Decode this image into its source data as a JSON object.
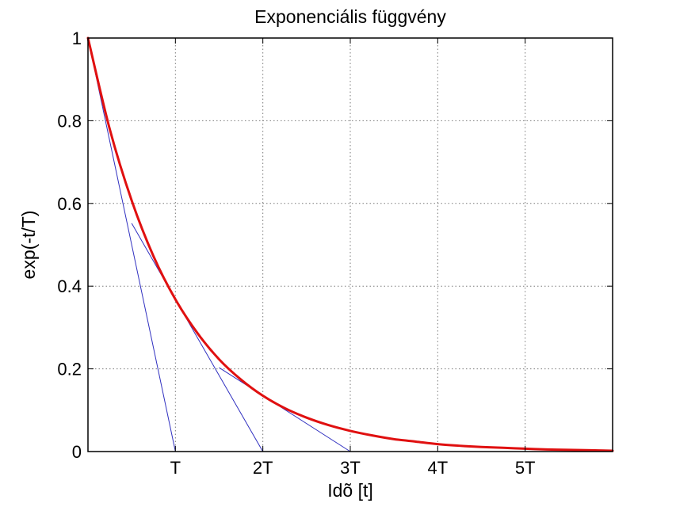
{
  "chart_data": {
    "type": "line",
    "title": "Exponenciális függvény",
    "xlabel": "Idõ [t]",
    "ylabel": "exp(-t/T)",
    "xlim": [
      0,
      6
    ],
    "ylim": [
      0,
      1
    ],
    "x_ticks": [
      {
        "value": 1,
        "label": "T"
      },
      {
        "value": 2,
        "label": "2T"
      },
      {
        "value": 3,
        "label": "3T"
      },
      {
        "value": 4,
        "label": "4T"
      },
      {
        "value": 5,
        "label": "5T"
      }
    ],
    "y_ticks": [
      {
        "value": 0,
        "label": "0"
      },
      {
        "value": 0.2,
        "label": "0.2"
      },
      {
        "value": 0.4,
        "label": "0.4"
      },
      {
        "value": 0.6,
        "label": "0.6"
      },
      {
        "value": 0.8,
        "label": "0.8"
      },
      {
        "value": 1,
        "label": "1"
      }
    ],
    "grid": true,
    "series": [
      {
        "color": "#e01010",
        "x": [
          0,
          0.25,
          0.5,
          0.75,
          1,
          1.25,
          1.5,
          1.75,
          2,
          2.25,
          2.5,
          2.75,
          3,
          3.25,
          3.5,
          3.75,
          4,
          4.25,
          4.5,
          4.75,
          5,
          5.25,
          5.5,
          5.75,
          6
        ],
        "y": [
          1,
          0.779,
          0.607,
          0.472,
          0.368,
          0.287,
          0.223,
          0.174,
          0.135,
          0.105,
          0.082,
          0.064,
          0.05,
          0.039,
          0.03,
          0.024,
          0.018,
          0.014,
          0.011,
          0.009,
          0.007,
          0.005,
          0.004,
          0.003,
          0.002
        ]
      }
    ],
    "tangent_lines": [
      {
        "color": "#3030c0",
        "points": [
          [
            0,
            1
          ],
          [
            1,
            0
          ]
        ]
      },
      {
        "color": "#3030c0",
        "points": [
          [
            0.5,
            0.552
          ],
          [
            2,
            0
          ]
        ]
      },
      {
        "color": "#3030c0",
        "points": [
          [
            1.5,
            0.203
          ],
          [
            3,
            0
          ]
        ]
      }
    ]
  }
}
